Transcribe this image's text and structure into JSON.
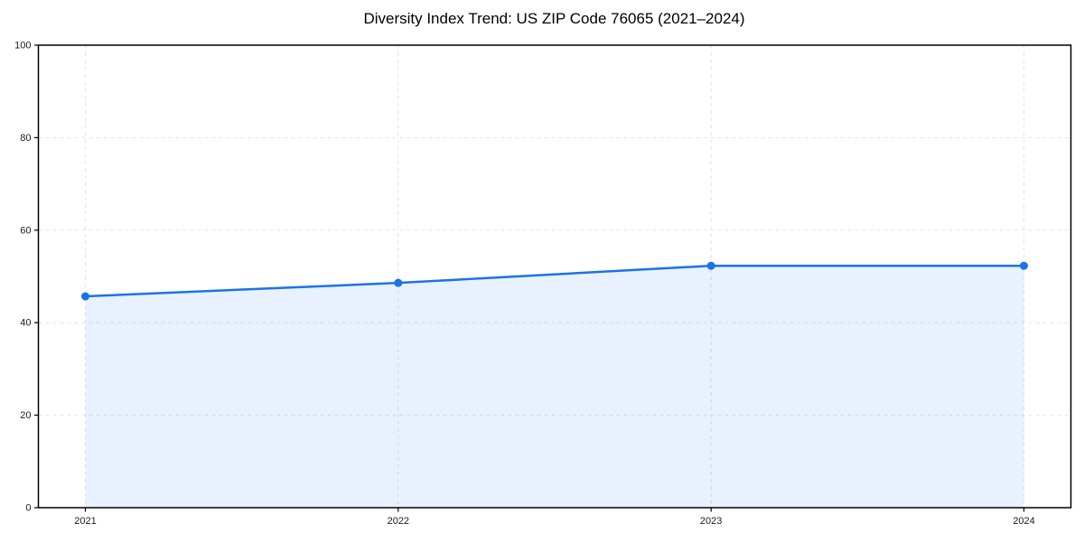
{
  "chart_data": {
    "type": "line",
    "title": "Diversity Index Trend: US ZIP Code 76065 (2021–2024)",
    "x": [
      2021,
      2022,
      2023,
      2024
    ],
    "xticks": [
      "2021",
      "2022",
      "2023",
      "2024"
    ],
    "yticks": [
      0,
      20,
      40,
      60,
      80,
      100
    ],
    "ylim": [
      0,
      100
    ],
    "series": [
      {
        "name": "Diversity Index",
        "values": [
          45.7,
          48.6,
          52.3,
          52.3
        ]
      }
    ],
    "xlabel": "",
    "ylabel": "",
    "legend": "none",
    "grid": "dashed-both",
    "area_fill": true,
    "colors": {
      "line": "#1a73e8",
      "marker": "#1a73e8",
      "fill": "rgba(26,115,232,0.10)",
      "grid": "#e3e3e3",
      "axis": "#000000",
      "tick_label": "#1a1a1a",
      "title": "#000000",
      "background": "#ffffff"
    }
  }
}
